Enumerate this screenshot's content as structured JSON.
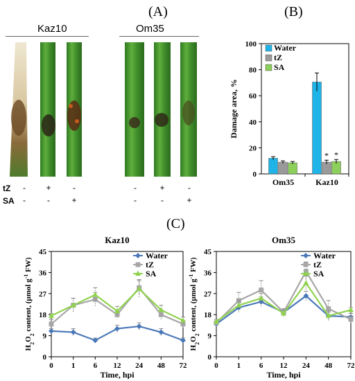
{
  "panels": {
    "a_label": "(A)",
    "b_label": "(B)",
    "c_label": "(C)"
  },
  "leaves": {
    "groups": [
      "Kaz10",
      "Om35"
    ],
    "treatment_row_labels": [
      "tZ",
      "SA"
    ],
    "tz_signs": [
      "-",
      "+",
      "-",
      "-",
      "+",
      "-"
    ],
    "sa_signs": [
      "-",
      "-",
      "+",
      "-",
      "-",
      "+"
    ]
  },
  "colors": {
    "water_bar": "#1fb4e8",
    "tz_bar": "#9a9a9a",
    "sa_bar": "#8ccf5a",
    "water_line": "#4a78b8",
    "tz_line": "#a6a6a6",
    "sa_line": "#8fd24e"
  },
  "chart_data": [
    {
      "type": "bar",
      "categories": [
        "Om35",
        "Kaz10"
      ],
      "ylabel": "Damage area, %",
      "ylim": [
        0,
        100
      ],
      "yticks": [
        0,
        20,
        40,
        60,
        80,
        100
      ],
      "legend": "top-left",
      "significance_marker": "*",
      "series": [
        {
          "name": "Water",
          "values": [
            12,
            70.5
          ],
          "errors": [
            1.2,
            7
          ]
        },
        {
          "name": "tZ",
          "values": [
            9,
            9
          ],
          "errors": [
            1,
            1.5
          ]
        },
        {
          "name": "SA",
          "values": [
            8.5,
            9.5
          ],
          "errors": [
            1,
            1.5
          ]
        }
      ]
    },
    {
      "type": "line",
      "title": "Kaz10",
      "x": [
        "0",
        "1",
        "6",
        "12",
        "24",
        "48",
        "72"
      ],
      "xlabel": "Time, hpi",
      "ylabel": "H2O2 content, (µmol g-1 FW)",
      "ylim": [
        0,
        45
      ],
      "yticks": [
        0,
        9,
        18,
        27,
        36,
        45
      ],
      "legend": "top-right",
      "series": [
        {
          "name": "Water",
          "values": [
            11,
            10.5,
            7,
            12,
            13,
            10.5,
            7
          ],
          "errors": [
            1,
            1.5,
            1,
            1.5,
            1.5,
            1.5,
            1
          ]
        },
        {
          "name": "tZ",
          "values": [
            14,
            22,
            24.5,
            18,
            29.5,
            18,
            14
          ],
          "errors": [
            2,
            3,
            3,
            1.5,
            3,
            2,
            1.5
          ]
        },
        {
          "name": "SA",
          "values": [
            17.5,
            22,
            26.5,
            19.5,
            29,
            20,
            15.5
          ],
          "errors": [
            1,
            3,
            3,
            2,
            4,
            2,
            1.5
          ]
        }
      ]
    },
    {
      "type": "line",
      "title": "Om35",
      "x": [
        "0",
        "1",
        "6",
        "12",
        "24",
        "48",
        "72"
      ],
      "xlabel": "Time, hpi",
      "ylabel": "H2O2 content, (µmol g-1 FW)",
      "ylim": [
        0,
        45
      ],
      "yticks": [
        0,
        9,
        18,
        27,
        36,
        45
      ],
      "legend": "top-right",
      "series": [
        {
          "name": "Water",
          "values": [
            14,
            21,
            23.5,
            19,
            26,
            17.5,
            17
          ],
          "errors": [
            1,
            2,
            2,
            1.5,
            2,
            1.5,
            1.5
          ]
        },
        {
          "name": "tZ",
          "values": [
            14.5,
            24,
            28.5,
            19,
            36.5,
            20.5,
            16
          ],
          "errors": [
            1.5,
            3.5,
            4,
            1.5,
            4,
            3.5,
            1.5
          ]
        },
        {
          "name": "SA",
          "values": [
            15,
            22,
            25,
            18.5,
            31.5,
            17.5,
            20
          ],
          "errors": [
            1,
            2,
            2,
            1.5,
            3,
            2,
            1
          ]
        }
      ]
    }
  ],
  "chart_text": {
    "h2o2_label_main": "H",
    "h2o2_sub1": "2",
    "h2o2_mid": "O",
    "h2o2_sub2": "2",
    "h2o2_rest": " content, (µmol g",
    "h2o2_sup": "-1",
    "h2o2_end": " FW)"
  }
}
